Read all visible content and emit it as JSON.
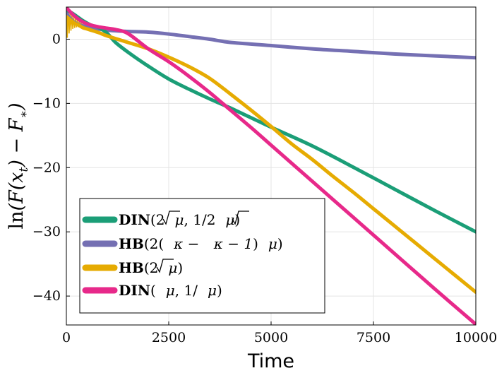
{
  "chart_data": {
    "type": "line",
    "title": "",
    "xlabel": "Time",
    "ylabel": "ln(F(x_t) − F_*)",
    "xlim": [
      0,
      10000
    ],
    "ylim": [
      -44.5,
      5
    ],
    "xticks": [
      0,
      2500,
      5000,
      7500,
      10000
    ],
    "yticks": [
      0,
      -10,
      -20,
      -30,
      -40
    ],
    "xtick_labels": [
      "0",
      "2500",
      "5000",
      "7500",
      "10000"
    ],
    "ytick_labels": [
      "0",
      "−10",
      "−20",
      "−30",
      "−40"
    ],
    "grid": true,
    "legend_position": "bottom-left",
    "series": [
      {
        "name": "DIN(2√μ, 1/2√μ)",
        "color": "#1b9e77",
        "x": [
          0,
          200,
          400,
          600,
          800,
          1000,
          1200,
          1500,
          2000,
          2500,
          3000,
          3500,
          4000,
          5000,
          6000,
          7000,
          8000,
          9000,
          10000
        ],
        "y": [
          4.6,
          3.8,
          2.9,
          2.2,
          1.8,
          0.9,
          -0.5,
          -2.0,
          -4.2,
          -6.2,
          -7.8,
          -9.3,
          -10.7,
          -13.7,
          -16.6,
          -19.9,
          -23.3,
          -26.7,
          -30.0
        ]
      },
      {
        "name": "HB(2(√κ − √(κ−1))√μ)",
        "color": "#7570b3",
        "x": [
          0,
          200,
          500,
          1000,
          1500,
          2000,
          2500,
          3000,
          3500,
          4000,
          5000,
          6000,
          7000,
          8000,
          9000,
          10000
        ],
        "y": [
          4.0,
          2.6,
          1.9,
          1.4,
          1.2,
          1.1,
          0.8,
          0.4,
          0.0,
          -0.5,
          -1.0,
          -1.5,
          -1.9,
          -2.3,
          -2.6,
          -2.9
        ]
      },
      {
        "name": "HB(2√μ)",
        "color": "#e6ab02",
        "x": [
          0,
          100,
          200,
          300,
          400,
          500,
          600,
          800,
          1000,
          1500,
          2000,
          2500,
          3000,
          3500,
          4000,
          4500,
          5000,
          5500,
          6000,
          6500,
          7000,
          7500,
          8000,
          8500,
          9000,
          9500,
          10000
        ],
        "y": [
          3.5,
          3.0,
          2.5,
          2.2,
          1.8,
          1.6,
          1.4,
          1.0,
          0.5,
          -0.5,
          -1.5,
          -2.8,
          -4.3,
          -6.1,
          -8.5,
          -11.0,
          -13.6,
          -16.3,
          -18.7,
          -21.3,
          -23.8,
          -26.4,
          -29.0,
          -31.6,
          -34.2,
          -36.8,
          -39.4
        ]
      },
      {
        "name": "DIN(√μ, 1/√μ)",
        "color": "#e7298a",
        "x": [
          0,
          200,
          400,
          600,
          800,
          1000,
          1200,
          1500,
          2000,
          2500,
          3000,
          3500,
          4000,
          4500,
          5000,
          6000,
          7000,
          8000,
          9000,
          10000
        ],
        "y": [
          4.9,
          3.6,
          2.7,
          2.2,
          1.9,
          1.7,
          1.5,
          0.9,
          -1.5,
          -3.5,
          -5.8,
          -8.3,
          -11.0,
          -13.7,
          -16.5,
          -22.1,
          -27.7,
          -33.3,
          -38.9,
          -44.4
        ]
      }
    ],
    "legend_labels": {
      "s1": {
        "a": "DIN",
        "b": "(2",
        "c": "μ",
        "d": ", 1/2",
        "e": "μ",
        "f": ")"
      },
      "s2": {
        "a": "HB",
        "b": "(2(",
        "c": "κ",
        "d": " − ",
        "e": "κ − 1",
        "f": ")",
        "g": "μ",
        "h": ")"
      },
      "s3": {
        "a": "HB",
        "b": "(2",
        "c": "μ",
        "d": ")"
      },
      "s4": {
        "a": "DIN",
        "b": "(",
        "c": "μ",
        "d": ", 1/",
        "e": "μ",
        "f": ")"
      }
    },
    "ylabel_parts": {
      "ln": "ln",
      "F1": "(F(",
      "x": "x",
      "t": "t",
      "close": ") − F",
      "star": "∗",
      "end": ")"
    }
  }
}
